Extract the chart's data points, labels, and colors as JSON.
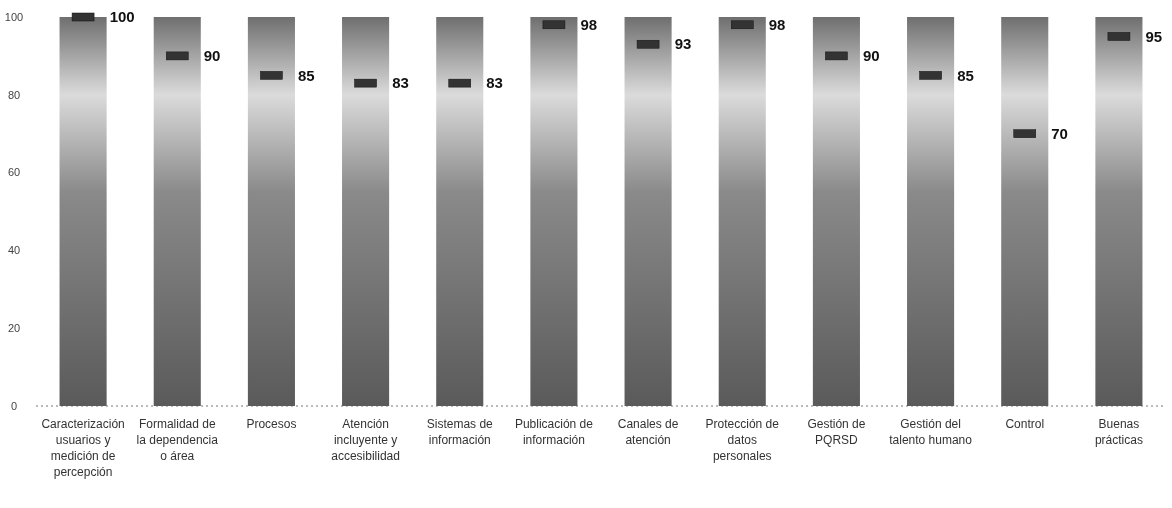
{
  "chart_data": {
    "type": "bar",
    "categories": [
      "Caracterización usuarios y medición de percepción",
      "Formalidad de la dependencia o área",
      "Procesos",
      "Atención incluyente y accesibilidad",
      "Sistemas de información",
      "Publicación de información",
      "Canales de atención",
      "Protección de datos personales",
      "Gestión de PQRSD",
      "Gestión del talento humano",
      "Control",
      "Buenas prácticas"
    ],
    "series": [
      {
        "color": "#8a8a8a",
        "values": [
          100,
          100,
          100,
          100,
          100,
          100,
          100,
          100,
          100,
          100,
          100,
          100
        ]
      },
      {
        "type": "scatter",
        "color": "#333333",
        "marker": "square",
        "data_labels": true,
        "values": [
          100,
          90,
          85,
          83,
          83,
          98,
          93,
          98,
          90,
          85,
          70,
          95
        ]
      }
    ],
    "ylim": [
      0,
      100
    ],
    "yticks": [
      0,
      20,
      40,
      60,
      80,
      100
    ],
    "grid": false
  }
}
